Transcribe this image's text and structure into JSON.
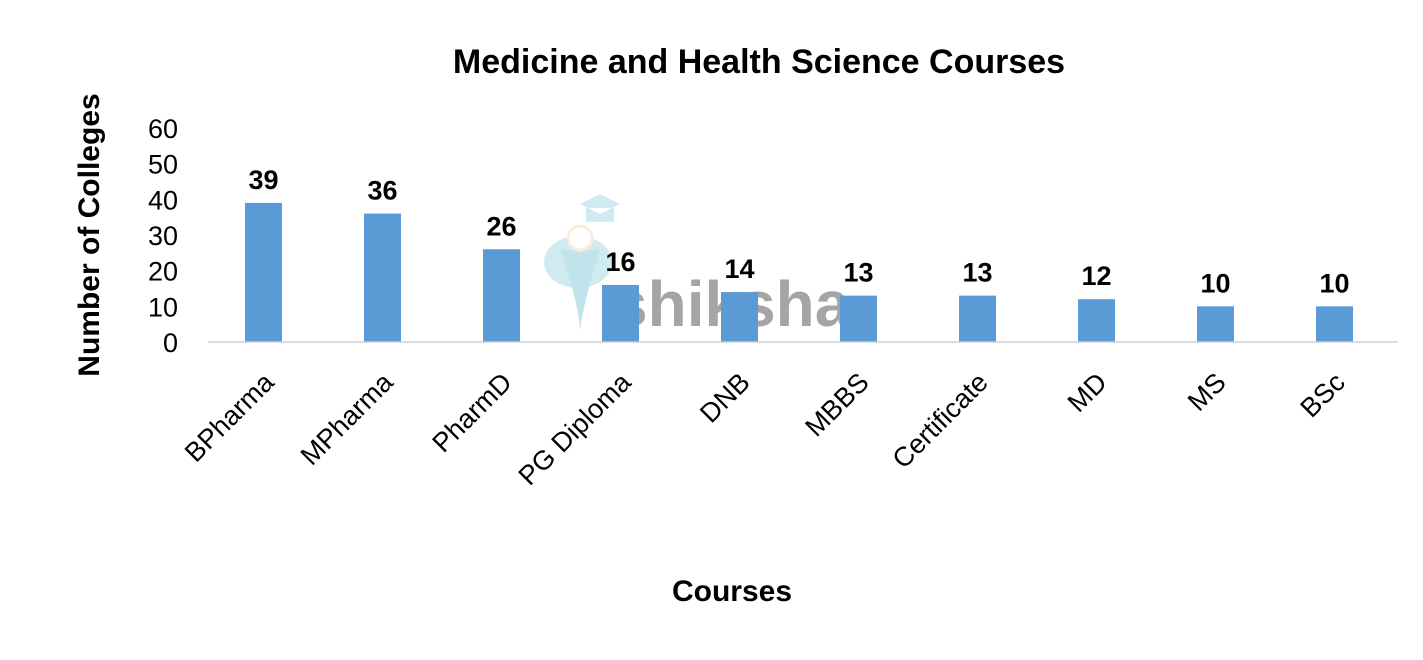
{
  "chart_data": {
    "type": "bar",
    "title": "Medicine and Health Science Courses",
    "xlabel": "Courses",
    "ylabel": "Number of Colleges",
    "categories": [
      "BPharma",
      "MPharma",
      "PharmD",
      "PG Diploma",
      "DNB",
      "MBBS",
      "Certificate",
      "MD",
      "MS",
      "BSc"
    ],
    "values": [
      39,
      36,
      26,
      16,
      14,
      13,
      13,
      12,
      10,
      10
    ],
    "ylim": [
      0,
      60
    ],
    "yticks": [
      0,
      10,
      20,
      30,
      40,
      50,
      60
    ],
    "grid": false,
    "legend": "none",
    "data_labels": true,
    "bar_color": "#5b9bd5"
  },
  "watermark": {
    "text": "shiksha",
    "color": "#4fb3c9"
  }
}
